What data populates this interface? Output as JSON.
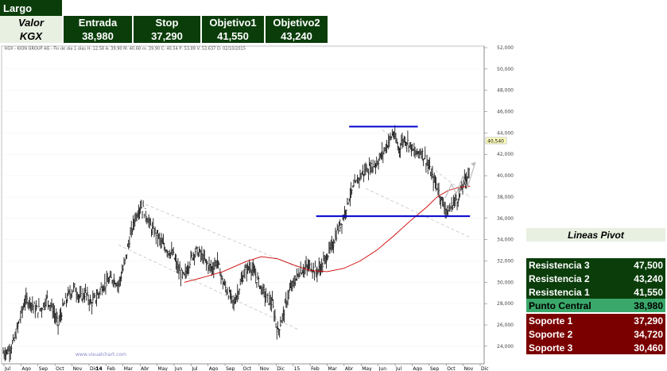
{
  "summary": {
    "position": "Largo",
    "row_label_header": "Valor",
    "ticker": "KGX",
    "columns": [
      "Entrada",
      "Stop",
      "Objetivo1",
      "Objetivo2"
    ],
    "values": [
      "38,980",
      "37,290",
      "41,550",
      "43,240"
    ]
  },
  "chart_header": "KGX - KION GROUP AG - Fin de dia 1 días H: 12:58 A: 39.90 M: 40.68 m: 39.90 C: 40.54 P: 53.89 V: 53.637 D: 02/10/2015",
  "watermark": "www.visualchart.com",
  "last_price_label": "40,540",
  "pivot": {
    "title": "Lineas Pivot",
    "rows": [
      {
        "label": "Resistencia 3",
        "value": "47,500"
      },
      {
        "label": "Resistencia 2",
        "value": "43,240"
      },
      {
        "label": "Resistencia 1",
        "value": "41,550"
      },
      {
        "label": "Punto Central",
        "value": "38,980"
      },
      {
        "label": "Soporte 1",
        "value": "37,290"
      },
      {
        "label": "Soporte 2",
        "value": "34,720"
      },
      {
        "label": "Soporte 3",
        "value": "30,460"
      }
    ]
  },
  "colors": {
    "dark_green": "#0a3d0a",
    "mid_green": "#3aa86a",
    "dark_red": "#7a0000",
    "ma_line": "#cc0000",
    "level_line": "#0000cc"
  },
  "chart_data": {
    "type": "line",
    "y_ticks": [
      "24,000",
      "26,000",
      "28,000",
      "30,000",
      "32,000",
      "34,000",
      "36,000",
      "38,000",
      "40,000",
      "42,000",
      "44,000",
      "46,000",
      "48,000",
      "50,000",
      "52,000"
    ],
    "ylim": [
      22.5,
      52
    ],
    "x_ticks": [
      "Jul",
      "Ago",
      "Sep",
      "Oct",
      "Nov",
      "Dic",
      "Feb",
      "Mar",
      "Abr",
      "May",
      "Jun",
      "Jul",
      "Ago",
      "Sep",
      "Oct",
      "Nov",
      "Dic",
      "15",
      "Feb",
      "Mar",
      "Abr",
      "May",
      "Jun",
      "Jul",
      "Ago",
      "Sep",
      "Oct",
      "Nov",
      "Dic"
    ],
    "x_tick_emph": {
      "14": "Feb"
    },
    "price": [
      [
        0,
        23.4
      ],
      [
        1,
        23.6
      ],
      [
        2,
        24.5
      ],
      [
        3,
        26.5
      ],
      [
        4,
        28.3
      ],
      [
        5,
        28.2
      ],
      [
        6,
        27.4
      ],
      [
        7,
        27.6
      ],
      [
        8,
        28.5
      ],
      [
        9,
        27.5
      ],
      [
        10,
        26.0
      ],
      [
        11,
        27.8
      ],
      [
        12,
        28.9
      ],
      [
        13,
        29.5
      ],
      [
        14,
        28.5
      ],
      [
        15,
        29.0
      ],
      [
        16,
        28.0
      ],
      [
        17,
        28.6
      ],
      [
        18,
        29.6
      ],
      [
        19,
        30.0
      ],
      [
        20,
        30.4
      ],
      [
        21,
        29.8
      ],
      [
        22,
        31.5
      ],
      [
        23,
        34.0
      ],
      [
        24,
        36.0
      ],
      [
        25,
        37.2
      ],
      [
        26,
        36.4
      ],
      [
        27,
        35.0
      ],
      [
        28,
        34.5
      ],
      [
        29,
        33.5
      ],
      [
        30,
        33.0
      ],
      [
        31,
        32.5
      ],
      [
        32,
        31.0
      ],
      [
        33,
        30.5
      ],
      [
        34,
        32.0
      ],
      [
        35,
        33.0
      ],
      [
        36,
        32.6
      ],
      [
        37,
        31.8
      ],
      [
        38,
        31.3
      ],
      [
        39,
        32.0
      ],
      [
        40,
        30.0
      ],
      [
        41,
        29.0
      ],
      [
        42,
        28.0
      ],
      [
        43,
        29.5
      ],
      [
        44,
        31.0
      ],
      [
        45,
        31.5
      ],
      [
        46,
        30.5
      ],
      [
        47,
        29.5
      ],
      [
        48,
        28.5
      ],
      [
        49,
        28.0
      ],
      [
        50,
        25.3
      ],
      [
        51,
        27.0
      ],
      [
        52,
        29.0
      ],
      [
        53,
        30.0
      ],
      [
        54,
        31.0
      ],
      [
        55,
        31.3
      ],
      [
        56,
        31.5
      ],
      [
        57,
        31.0
      ],
      [
        58,
        31.5
      ],
      [
        59,
        32.5
      ],
      [
        60,
        33.5
      ],
      [
        61,
        35.0
      ],
      [
        62,
        36.2
      ],
      [
        63,
        38.0
      ],
      [
        64,
        39.0
      ],
      [
        65,
        40.0
      ],
      [
        66,
        40.5
      ],
      [
        67,
        40.8
      ],
      [
        68,
        41.2
      ],
      [
        69,
        42.0
      ],
      [
        70,
        43.0
      ],
      [
        71,
        44.0
      ],
      [
        72,
        42.5
      ],
      [
        73,
        43.5
      ],
      [
        74,
        43.0
      ],
      [
        75,
        42.0
      ],
      [
        76,
        42.3
      ],
      [
        77,
        41.5
      ],
      [
        78,
        40.0
      ],
      [
        79,
        39.0
      ],
      [
        80,
        37.5
      ],
      [
        81,
        36.5
      ],
      [
        82,
        37.5
      ],
      [
        83,
        38.0
      ],
      [
        84,
        39.5
      ],
      [
        85,
        40.54
      ]
    ],
    "moving_average": [
      [
        33,
        30.0
      ],
      [
        36,
        30.4
      ],
      [
        40,
        31.0
      ],
      [
        44,
        31.9
      ],
      [
        47,
        32.4
      ],
      [
        50,
        32.2
      ],
      [
        53,
        31.6
      ],
      [
        56,
        31.1
      ],
      [
        59,
        31.0
      ],
      [
        62,
        31.3
      ],
      [
        65,
        32.0
      ],
      [
        68,
        33.0
      ],
      [
        71,
        34.3
      ],
      [
        74,
        35.7
      ],
      [
        77,
        37.0
      ],
      [
        79,
        38.0
      ],
      [
        81,
        38.6
      ],
      [
        83,
        38.9
      ],
      [
        85,
        39.0
      ]
    ],
    "resistance_level": {
      "y": 44.6,
      "x_start": 63,
      "x_end": 75.5
    },
    "support_level": {
      "y": 36.2,
      "x_start": 57,
      "x_end": 85
    },
    "x_max": 87
  }
}
